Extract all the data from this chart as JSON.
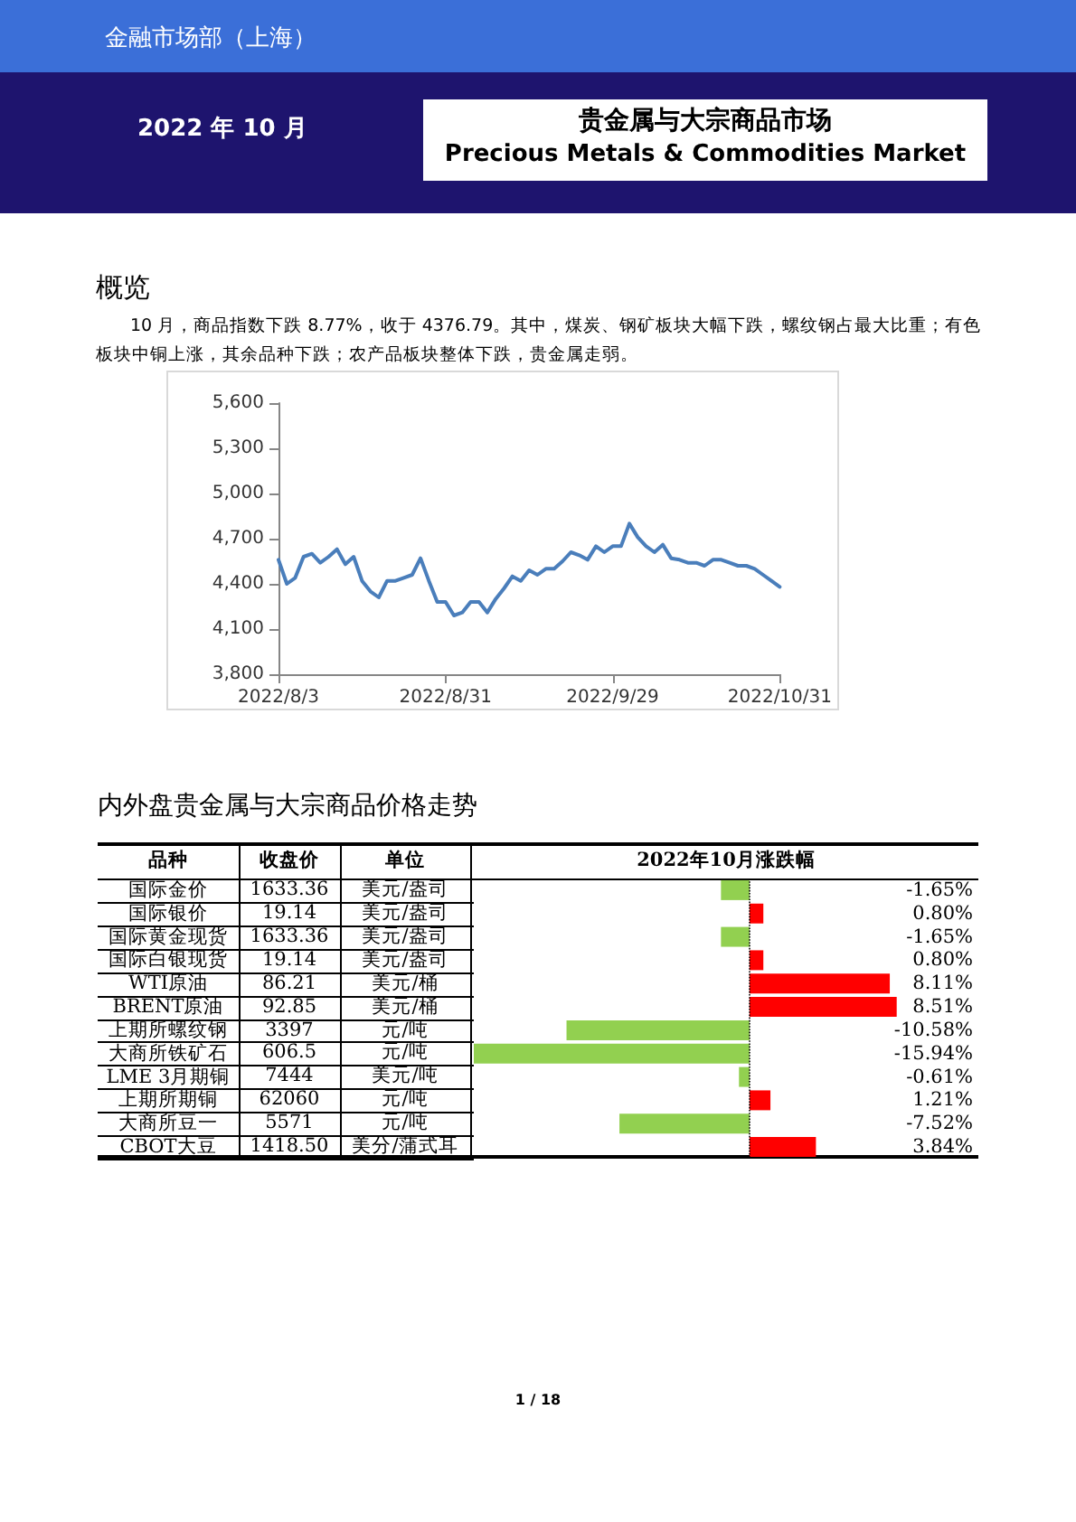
{
  "chart_data": [
    {
      "type": "other",
      "title": "贵金属与大宗商品市场",
      "subtitle": "Precious Metals & Commodities Market",
      "annotations": [
        "金融市场部（上海）",
        "2022 年 10 月",
        "1 / 18"
      ]
    },
    {
      "type": "line",
      "title": "概览",
      "annotations": [
        "10 月，商品指数下跌 8.77%，收于 4376.79。其中，煤炭、钢矿板块大幅下跌，螺纹钢占最大比重；有色板块中铜上涨，其余品种下跌；农产品板块整体下跌，贵金属走弱。"
      ],
      "categories": [
        "2022/8/3",
        null,
        null,
        null,
        null,
        null,
        null,
        null,
        null,
        null,
        null,
        null,
        null,
        null,
        null,
        null,
        null,
        null,
        null,
        null,
        "2022/8/31",
        null,
        null,
        null,
        null,
        null,
        null,
        null,
        null,
        null,
        null,
        null,
        null,
        null,
        null,
        null,
        null,
        null,
        null,
        null,
        "2022/9/29",
        null,
        null,
        null,
        null,
        null,
        null,
        null,
        null,
        null,
        null,
        null,
        null,
        null,
        null,
        null,
        null,
        null,
        null,
        null,
        "2022/10/31"
      ],
      "series": [
        {
          "color": "#4a7ebb",
          "values": [
            4560,
            4400,
            4440,
            4580,
            4600,
            4540,
            4580,
            4630,
            4530,
            4580,
            4420,
            4350,
            4310,
            4420,
            4420,
            4440,
            4460,
            4570,
            4420,
            4280,
            4280,
            4190,
            4210,
            4280,
            4280,
            4210,
            4300,
            4370,
            4450,
            4420,
            4490,
            4460,
            4500,
            4500,
            4550,
            4610,
            4590,
            4560,
            4650,
            4610,
            4650,
            4650,
            4800,
            4710,
            4650,
            4610,
            4660,
            4570,
            4560,
            4540,
            4540,
            4520,
            4560,
            4560,
            4540,
            4520,
            4520,
            4500,
            4460,
            4420,
            4380
          ]
        }
      ],
      "ylim": [
        3800,
        5600
      ],
      "yticks": [
        {
          "value": 3800,
          "label": "3,800"
        },
        {
          "value": 4100,
          "label": "4,100"
        },
        {
          "value": 4400,
          "label": "4,400"
        },
        {
          "value": 4700,
          "label": "4,700"
        },
        {
          "value": 5000,
          "label": "5,000"
        },
        {
          "value": 5300,
          "label": "5,300"
        },
        {
          "value": 5600,
          "label": "5,600"
        }
      ],
      "marker": "none",
      "line_style": "solid"
    },
    {
      "type": "other",
      "title": "内外盘贵金属与大宗商品价格走势",
      "annotations": [
        "收盘价",
        "单位",
        "1633.36",
        "美元/盎司",
        "19.14",
        "美元/盎司",
        "1633.36",
        "美元/盎司",
        "19.14",
        "美元/盎司",
        "86.21",
        "美元/桶",
        "92.85",
        "美元/桶",
        "3397",
        "元/吨",
        "606.5",
        "元/吨",
        "7444",
        "美元/吨",
        "62060",
        "元/吨",
        "5571",
        "元/吨",
        "1418.50",
        "美分/蒲式耳"
      ]
    },
    {
      "type": "bar",
      "orientation": "horizontal",
      "title": "2022年10月涨跌幅",
      "ylabel": "品种",
      "categories": [
        "国际金价",
        "国际银价",
        "国际黄金现货",
        "国际白银现货",
        "WTI原油",
        "BRENT原油",
        "上期所螺纹钢",
        "大商所铁矿石",
        "LME 3月期铜",
        "上期所期铜",
        "大商所豆一",
        "CBOT大豆"
      ],
      "values": [
        -1.65,
        0.8,
        -1.65,
        0.8,
        8.11,
        8.51,
        -10.58,
        -15.94,
        -0.61,
        1.21,
        -7.52,
        3.84
      ],
      "colors": [
        "#92d050",
        "#ff0000",
        "#92d050",
        "#ff0000",
        "#ff0000",
        "#ff0000",
        "#92d050",
        "#92d050",
        "#92d050",
        "#ff0000",
        "#92d050",
        "#ff0000"
      ],
      "ref_lines": [
        {
          "axis": "x",
          "value": 0,
          "color": "#000000",
          "line_style": "dotted"
        }
      ],
      "value_labels": [
        "-1.65%",
        "0.80%",
        "-1.65%",
        "0.80%",
        "8.11%",
        "8.51%",
        "-10.58%",
        "-15.94%",
        "-0.61%",
        "1.21%",
        "-7.52%",
        "3.84%"
      ]
    }
  ]
}
